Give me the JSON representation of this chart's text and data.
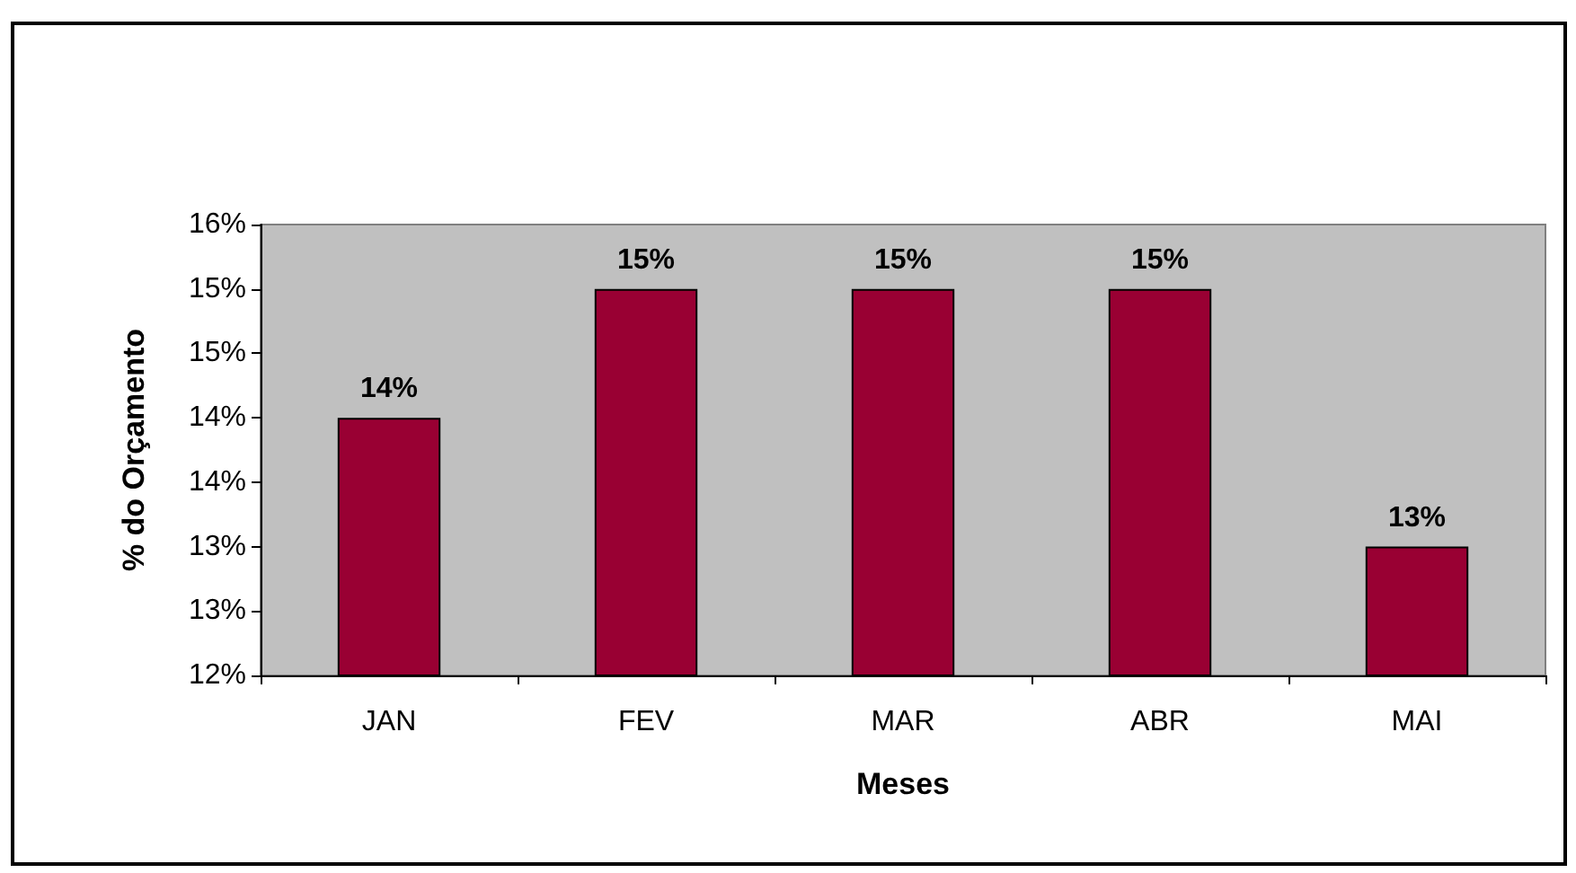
{
  "chart_data": {
    "type": "bar",
    "xlabel": "Meses",
    "ylabel": "% do Orçamento",
    "categories": [
      "JAN",
      "FEV",
      "MAR",
      "ABR",
      "MAI"
    ],
    "values": [
      14,
      15,
      15,
      15,
      13
    ],
    "value_labels": [
      "14%",
      "15%",
      "15%",
      "15%",
      "13%"
    ],
    "color": "#990033",
    "ylim": [
      12,
      15.5
    ],
    "yticks": [
      {
        "value": 12,
        "label": "12%"
      },
      {
        "value": 12.5,
        "label": "13%"
      },
      {
        "value": 13,
        "label": "13%"
      },
      {
        "value": 13.5,
        "label": "14%"
      },
      {
        "value": 14,
        "label": "14%"
      },
      {
        "value": 14.5,
        "label": "15%"
      },
      {
        "value": 15,
        "label": "15%"
      },
      {
        "value": 15.5,
        "label": "16%"
      }
    ],
    "grid": false
  }
}
